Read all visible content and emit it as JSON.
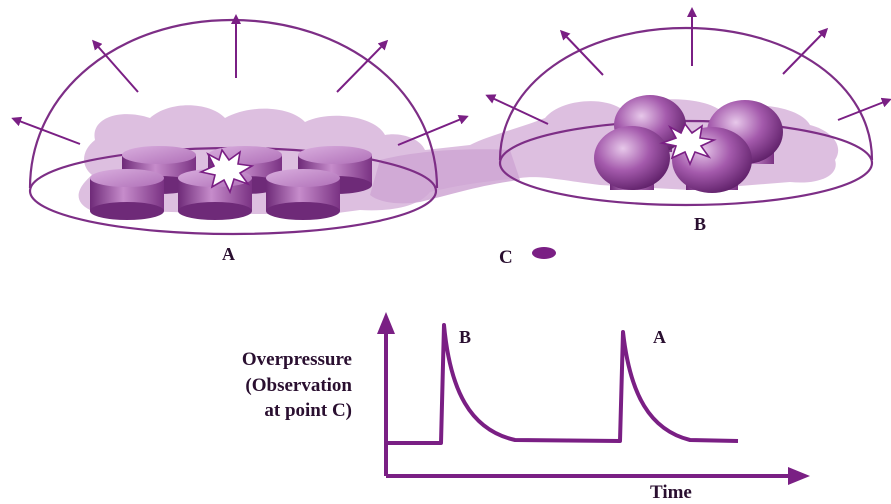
{
  "colors": {
    "accent": "#7a1f84",
    "dome": "#7d2e86",
    "cloud": "#d9b8dd",
    "tank_dark": "#6e2a78",
    "tank_light": "#c07fc6",
    "text": "#2a0f30"
  },
  "icons": [
    "explosion-flash-icon",
    "arrow-icon"
  ],
  "labels": {
    "dome_a": "A",
    "dome_b": "B",
    "point_c": "C",
    "peak_b": "B",
    "peak_a": "A"
  },
  "chart": {
    "ylabel_lines": [
      "Overpressure",
      "(Observation",
      "at point C)"
    ],
    "xlabel": "Time"
  }
}
